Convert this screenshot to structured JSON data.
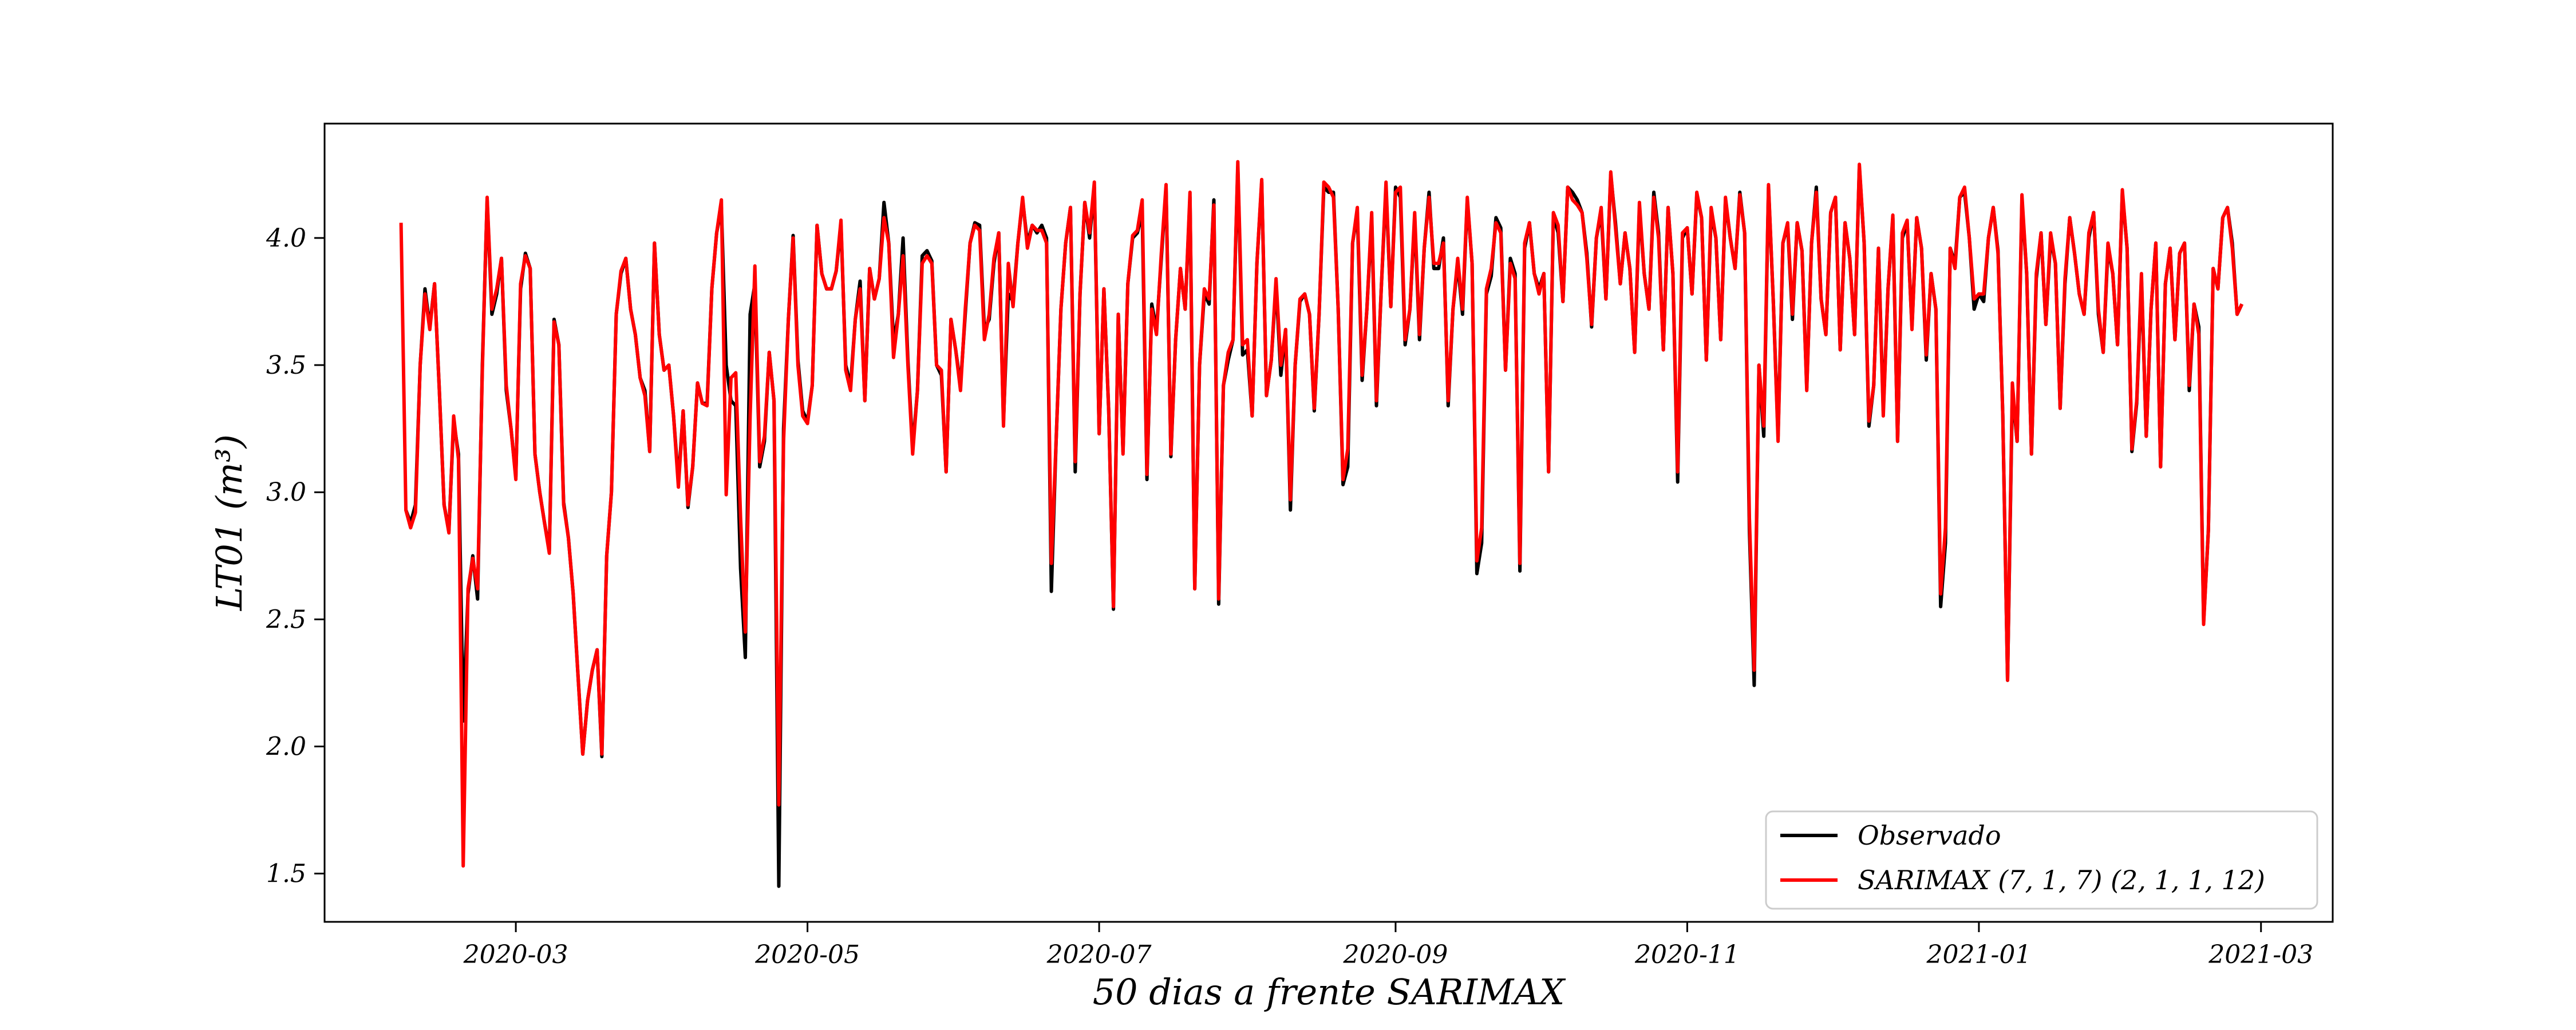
{
  "chart_data": {
    "type": "line",
    "xlabel": "50 dias a frente SARIMAX",
    "ylabel": "LT01 (m³)",
    "xlim": [
      "2020-01-21",
      "2021-03-16"
    ],
    "ylim": [
      1.31,
      4.45
    ],
    "x_ticks": [
      "2020-03",
      "2020-05",
      "2020-07",
      "2020-09",
      "2020-11",
      "2021-01",
      "2021-03"
    ],
    "y_ticks": [
      1.5,
      2.0,
      2.5,
      3.0,
      3.5,
      4.0
    ],
    "y_tick_labels": [
      "1.5",
      "2.0",
      "2.5",
      "3.0",
      "3.5",
      "4.0"
    ],
    "grid": false,
    "legend_position": "bottom-right",
    "start_date": "2020-02-06",
    "series": [
      {
        "name": "Observado",
        "color": "#000000",
        "start_date": "2020-02-07",
        "values": [
          2.93,
          2.88,
          2.95,
          3.5,
          3.8,
          3.65,
          3.82,
          3.4,
          2.95,
          2.85,
          3.28,
          3.15,
          2.1,
          2.6,
          2.75,
          2.58,
          3.5,
          4.15,
          3.7,
          3.78,
          3.92,
          3.4,
          3.25,
          3.06,
          3.8,
          3.94,
          3.88,
          3.15,
          3.0,
          2.88,
          2.77,
          3.68,
          3.58,
          2.96,
          2.82,
          2.6,
          2.28,
          1.97,
          2.18,
          2.3,
          2.38,
          1.96,
          2.75,
          3.0,
          3.7,
          3.86,
          3.92,
          3.72,
          3.62,
          3.45,
          3.4,
          3.16,
          3.98,
          3.62,
          3.48,
          3.5,
          3.3,
          3.04,
          3.32,
          2.94,
          3.1,
          3.43,
          3.35,
          3.35,
          3.8,
          4.02,
          4.12,
          3.5,
          3.36,
          3.34,
          2.7,
          2.35,
          3.7,
          3.82,
          3.1,
          3.2,
          3.55,
          3.36,
          1.45,
          3.25,
          3.68,
          4.01,
          3.52,
          3.32,
          3.28,
          3.42,
          4.05,
          3.86,
          3.8,
          3.8,
          3.87,
          4.05,
          3.5,
          3.42,
          3.68,
          3.83,
          3.36,
          3.88,
          3.76,
          3.84,
          4.14,
          3.98,
          3.59,
          3.7,
          4.0,
          3.52,
          3.17,
          3.4,
          3.93,
          3.95,
          3.91,
          3.5,
          3.46,
          3.08,
          3.68,
          3.56,
          3.42,
          3.7,
          3.98,
          4.06,
          4.05,
          3.64,
          3.68,
          3.9,
          4.02,
          3.28,
          3.78,
          3.75,
          3.98,
          4.15,
          3.98,
          4.05,
          4.02,
          4.05,
          4.0,
          2.61,
          3.2,
          3.72,
          3.98,
          4.12,
          3.08,
          3.78,
          4.14,
          4.0,
          4.2,
          3.23,
          3.8,
          3.32,
          2.54,
          3.7,
          3.16,
          3.82,
          4.0,
          4.02,
          4.1,
          3.05,
          3.74,
          3.64,
          3.92,
          4.2,
          3.14,
          3.6,
          3.88,
          3.72,
          4.16,
          2.62,
          3.5,
          3.78,
          3.74,
          4.15,
          2.56,
          3.42,
          3.52,
          3.6,
          4.28,
          3.54,
          3.56,
          3.3,
          3.9,
          4.22,
          3.38,
          3.52,
          3.82,
          3.46,
          3.64,
          2.93,
          3.5,
          3.75,
          3.78,
          3.7,
          3.32,
          3.7,
          4.2,
          4.18,
          4.18,
          3.72,
          3.03,
          3.1,
          3.98,
          4.1,
          3.44,
          3.72,
          4.08,
          3.34,
          3.8,
          4.2,
          3.73,
          4.2,
          4.16,
          3.58,
          3.72,
          4.08,
          3.6,
          3.96,
          4.18,
          3.88,
          3.88,
          4.0,
          3.34,
          3.72,
          3.9,
          3.7,
          4.15,
          3.9,
          2.68,
          2.8,
          3.78,
          3.85,
          4.08,
          4.04,
          3.48,
          3.92,
          3.86,
          2.69,
          3.96,
          4.06,
          3.86,
          3.8,
          3.86,
          3.08,
          4.09,
          4.02,
          3.75,
          4.2,
          4.18,
          4.15,
          4.1,
          3.94,
          3.65,
          4.0,
          4.1,
          3.76,
          4.25,
          4.06,
          3.82,
          4.02,
          3.88,
          3.55,
          4.12,
          3.86,
          3.72,
          4.18,
          4.02,
          3.56,
          4.12,
          3.86,
          3.04,
          4.0,
          4.04,
          3.78,
          4.17,
          4.08,
          3.52,
          4.1,
          4.0,
          3.6,
          4.15,
          4.0,
          3.88,
          4.18,
          4.02,
          2.85,
          2.24,
          3.5,
          3.22,
          4.2,
          3.75,
          3.22,
          3.98,
          4.05,
          3.68,
          4.06,
          3.95,
          3.41,
          3.98,
          4.2,
          3.76,
          3.62,
          4.1,
          4.16,
          3.56,
          4.06,
          3.92,
          3.62,
          4.28,
          3.98,
          3.26,
          3.42,
          3.96,
          3.32,
          3.8,
          4.08,
          3.2,
          4.0,
          4.06,
          3.65,
          4.08,
          3.96,
          3.52,
          3.86,
          3.72,
          2.55,
          2.8,
          3.96,
          3.9,
          4.16,
          4.18,
          4.0,
          3.72,
          3.78,
          3.75,
          4.0,
          4.12,
          3.95,
          3.3,
          2.26,
          3.4,
          3.2,
          4.15,
          3.86,
          3.15,
          3.84,
          4.02,
          3.66,
          4.0,
          3.9,
          3.33,
          3.82,
          4.08,
          3.94,
          3.78,
          3.7,
          4.0,
          4.1,
          3.7,
          3.55,
          3.96,
          3.86,
          3.58,
          4.18,
          3.96,
          3.16,
          3.35,
          3.84,
          3.22,
          3.72,
          3.98,
          3.1,
          3.82,
          3.96,
          3.6,
          3.94,
          3.98,
          3.4,
          3.74,
          3.65,
          2.49,
          2.85,
          3.88,
          3.8,
          4.08,
          4.12,
          3.98,
          3.7,
          3.74
        ]
      },
      {
        "name": "SARIMAX (7, 1, 7) (2, 1, 1, 12)",
        "color": "#ff0000",
        "start_date": "2020-02-06",
        "values": [
          4.06,
          2.93,
          2.86,
          2.92,
          3.5,
          3.78,
          3.64,
          3.82,
          3.4,
          2.95,
          2.84,
          3.3,
          3.13,
          1.53,
          2.62,
          2.74,
          2.62,
          3.48,
          4.16,
          3.72,
          3.8,
          3.92,
          3.42,
          3.25,
          3.05,
          3.82,
          3.93,
          3.88,
          3.15,
          3.0,
          2.88,
          2.76,
          3.67,
          3.58,
          2.95,
          2.82,
          2.6,
          2.28,
          1.97,
          2.18,
          2.3,
          2.38,
          1.97,
          2.75,
          3.0,
          3.7,
          3.87,
          3.92,
          3.72,
          3.62,
          3.45,
          3.38,
          3.16,
          3.98,
          3.62,
          3.48,
          3.5,
          3.3,
          3.02,
          3.32,
          2.95,
          3.1,
          3.43,
          3.35,
          3.34,
          3.8,
          4.02,
          4.15,
          2.99,
          3.45,
          3.47,
          2.9,
          2.45,
          3.3,
          3.89,
          3.12,
          3.22,
          3.55,
          3.36,
          1.77,
          3.2,
          3.68,
          4.0,
          3.5,
          3.3,
          3.27,
          3.42,
          4.05,
          3.86,
          3.8,
          3.8,
          3.87,
          4.07,
          3.48,
          3.4,
          3.68,
          3.8,
          3.36,
          3.88,
          3.76,
          3.84,
          4.08,
          3.98,
          3.53,
          3.7,
          3.93,
          3.5,
          3.15,
          3.4,
          3.9,
          3.93,
          3.9,
          3.5,
          3.48,
          3.08,
          3.68,
          3.56,
          3.4,
          3.72,
          3.98,
          4.05,
          4.03,
          3.6,
          3.7,
          3.92,
          4.02,
          3.26,
          3.9,
          3.73,
          3.98,
          4.16,
          3.96,
          4.05,
          4.03,
          4.03,
          3.98,
          2.72,
          3.2,
          3.72,
          3.98,
          4.12,
          3.12,
          3.78,
          4.14,
          4.02,
          4.22,
          3.23,
          3.8,
          3.32,
          2.55,
          3.7,
          3.15,
          3.82,
          4.01,
          4.03,
          4.15,
          3.07,
          3.72,
          3.62,
          3.94,
          4.21,
          3.15,
          3.6,
          3.88,
          3.72,
          4.18,
          2.62,
          3.5,
          3.8,
          3.76,
          4.13,
          2.58,
          3.42,
          3.55,
          3.6,
          4.3,
          3.58,
          3.6,
          3.3,
          3.9,
          4.23,
          3.38,
          3.52,
          3.84,
          3.5,
          3.64,
          2.97,
          3.5,
          3.76,
          3.78,
          3.7,
          3.33,
          3.7,
          4.22,
          4.2,
          4.16,
          3.72,
          3.05,
          3.17,
          3.98,
          4.12,
          3.46,
          3.72,
          4.1,
          3.36,
          3.8,
          4.22,
          3.73,
          4.18,
          4.2,
          3.6,
          3.72,
          4.1,
          3.62,
          3.96,
          4.16,
          3.9,
          3.9,
          3.98,
          3.36,
          3.72,
          3.92,
          3.72,
          4.16,
          3.9,
          2.73,
          2.86,
          3.8,
          3.88,
          4.06,
          4.02,
          3.48,
          3.9,
          3.84,
          2.72,
          3.98,
          4.06,
          3.86,
          3.78,
          3.86,
          3.08,
          4.1,
          4.05,
          3.75,
          4.2,
          4.15,
          4.13,
          4.1,
          3.92,
          3.66,
          4.0,
          4.12,
          3.76,
          4.26,
          4.04,
          3.82,
          4.02,
          3.88,
          3.55,
          4.14,
          3.86,
          3.72,
          4.16,
          4.0,
          3.56,
          4.12,
          3.86,
          3.08,
          4.02,
          4.04,
          3.78,
          4.18,
          4.08,
          3.52,
          4.12,
          4.0,
          3.6,
          4.16,
          4.0,
          3.88,
          4.17,
          4.02,
          2.9,
          2.3,
          3.5,
          3.26,
          4.21,
          3.75,
          3.2,
          3.98,
          4.06,
          3.7,
          4.06,
          3.95,
          3.4,
          3.98,
          4.18,
          3.76,
          3.62,
          4.1,
          4.16,
          3.56,
          4.06,
          3.92,
          3.62,
          4.29,
          3.98,
          3.28,
          3.42,
          3.96,
          3.3,
          3.8,
          4.09,
          3.2,
          4.02,
          4.07,
          3.64,
          4.08,
          3.96,
          3.54,
          3.86,
          3.72,
          2.6,
          2.86,
          3.96,
          3.88,
          4.16,
          4.2,
          4.0,
          3.76,
          3.78,
          3.78,
          4.0,
          4.12,
          3.94,
          3.3,
          2.26,
          3.43,
          3.2,
          4.17,
          3.86,
          3.15,
          3.86,
          4.02,
          3.66,
          4.02,
          3.9,
          3.33,
          3.84,
          4.08,
          3.94,
          3.78,
          3.7,
          4.02,
          4.1,
          3.72,
          3.55,
          3.98,
          3.86,
          3.58,
          4.19,
          3.96,
          3.17,
          3.36,
          3.86,
          3.22,
          3.72,
          3.98,
          3.1,
          3.82,
          3.96,
          3.6,
          3.94,
          3.98,
          3.42,
          3.74,
          3.62,
          2.48,
          2.85,
          3.88,
          3.8,
          4.08,
          4.12,
          3.96,
          3.7,
          3.74
        ]
      }
    ]
  }
}
